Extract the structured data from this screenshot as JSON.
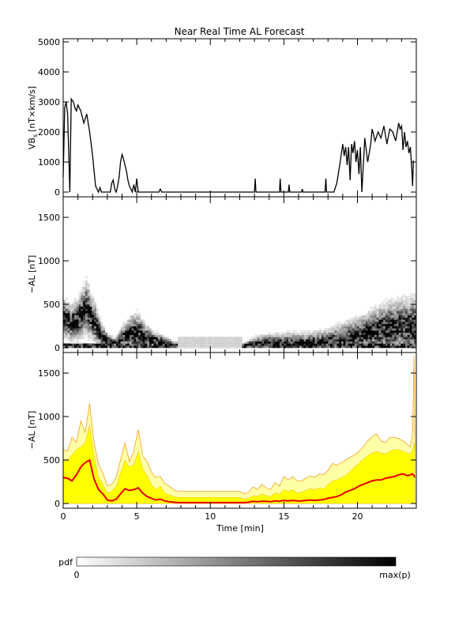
{
  "chart_data": [
    {
      "type": "line",
      "title": "Near Real Time AL Forecast",
      "ylabel": "VB",
      "ylabel_sub": "s",
      "ylabel_unit": "[nT×km/s]",
      "ylim": [
        0,
        5000
      ],
      "xlim": [
        0,
        24
      ],
      "y_ticks": [
        "0",
        "1000",
        "2000",
        "3000",
        "4000",
        "5000"
      ],
      "series": [
        {
          "color": "#000000",
          "x": [
            0,
            0.1,
            0.2,
            0.3,
            0.45,
            0.55,
            0.7,
            0.8,
            0.9,
            1.0,
            1.2,
            1.4,
            1.6,
            1.8,
            2.0,
            2.1,
            2.2,
            2.4,
            2.5,
            2.6,
            3.2,
            3.3,
            3.4,
            3.5,
            3.6,
            3.7,
            3.8,
            3.9,
            4.0,
            4.1,
            4.2,
            4.3,
            4.4,
            4.5,
            4.6,
            4.7,
            4.8,
            4.9,
            5.0,
            5.1,
            5.2,
            5.4,
            6.5,
            6.6,
            6.7,
            7.5,
            12.0,
            13.0,
            13.05,
            13.1,
            14.7,
            14.75,
            14.8,
            15.3,
            15.35,
            15.4,
            16.2,
            16.25,
            16.3,
            17.8,
            17.85,
            17.9,
            18.4,
            18.6,
            18.8,
            19.0,
            19.1,
            19.2,
            19.3,
            19.4,
            19.5,
            19.6,
            19.7,
            19.8,
            19.9,
            20.0,
            20.1,
            20.2,
            20.3,
            20.5,
            20.7,
            20.9,
            21.0,
            21.2,
            21.4,
            21.6,
            21.8,
            22.0,
            22.2,
            22.4,
            22.6,
            22.8,
            22.9,
            23.0,
            23.1,
            23.2,
            23.3,
            23.4,
            23.5,
            23.6,
            23.7,
            23.75,
            23.8
          ],
          "values": [
            500,
            2800,
            3000,
            2600,
            0,
            3100,
            3000,
            2800,
            2700,
            2900,
            2700,
            2300,
            2600,
            2000,
            1200,
            700,
            200,
            0,
            150,
            0,
            0,
            300,
            400,
            100,
            0,
            200,
            500,
            1000,
            1250,
            1100,
            900,
            700,
            400,
            200,
            100,
            0,
            250,
            0,
            450,
            0,
            0,
            0,
            0,
            100,
            0,
            0,
            0,
            0,
            450,
            0,
            0,
            450,
            0,
            0,
            250,
            0,
            0,
            100,
            0,
            0,
            450,
            0,
            0,
            300,
            900,
            1600,
            1200,
            1500,
            900,
            1500,
            400,
            1600,
            1300,
            1700,
            1000,
            1400,
            600,
            1500,
            0,
            1800,
            1000,
            1600,
            2100,
            1700,
            2000,
            1800,
            2200,
            1600,
            2100,
            2000,
            1700,
            2300,
            2100,
            2200,
            1400,
            2000,
            1500,
            1700,
            1300,
            1500,
            700,
            200,
            1050
          ]
        }
      ]
    },
    {
      "type": "heatmap",
      "ylabel": "−AL [nT]",
      "ylim": [
        0,
        1700
      ],
      "xlim": [
        0,
        24
      ],
      "y_ticks": [
        "0",
        "500",
        "1000",
        "1500"
      ],
      "colorbar": {
        "label": "pdf",
        "min_label": "0",
        "max_label": "max(p)"
      },
      "profile": {
        "x": [
          0,
          0.5,
          1.0,
          1.5,
          2.0,
          2.5,
          3.0,
          3.5,
          4.0,
          4.5,
          5.0,
          5.5,
          6.0,
          6.5,
          7.0,
          7.5,
          8.0,
          12.0,
          12.5,
          13.0,
          14.0,
          15.0,
          16.0,
          17.0,
          18.0,
          19.0,
          19.5,
          20.0,
          20.5,
          21.0,
          21.5,
          22.0,
          22.5,
          23.0,
          23.5,
          23.9
        ],
        "center": [
          330,
          270,
          330,
          460,
          300,
          140,
          60,
          40,
          100,
          150,
          160,
          110,
          80,
          60,
          40,
          20,
          10,
          10,
          20,
          30,
          30,
          30,
          35,
          40,
          50,
          80,
          100,
          120,
          150,
          180,
          200,
          220,
          230,
          240,
          230,
          200
        ],
        "spread": [
          280,
          260,
          320,
          400,
          320,
          180,
          100,
          80,
          180,
          280,
          300,
          200,
          140,
          110,
          80,
          50,
          40,
          40,
          60,
          120,
          150,
          170,
          160,
          170,
          200,
          250,
          260,
          280,
          300,
          330,
          350,
          380,
          380,
          400,
          420,
          480
        ]
      }
    },
    {
      "type": "area",
      "xlabel": "Time [min]",
      "ylabel": "−AL [nT]",
      "ylim": [
        0,
        1700
      ],
      "xlim": [
        0,
        24
      ],
      "x_ticks": [
        "0",
        "5",
        "10",
        "15",
        "20"
      ],
      "x_tick_values": [
        0,
        5,
        10,
        15,
        20
      ],
      "y_ticks": [
        "0",
        "500",
        "1000",
        "1500"
      ],
      "x": [
        0,
        0.3,
        0.6,
        0.9,
        1.2,
        1.5,
        1.8,
        2.1,
        2.4,
        2.7,
        3.0,
        3.3,
        3.6,
        3.9,
        4.2,
        4.5,
        4.8,
        5.1,
        5.4,
        5.7,
        6.0,
        6.3,
        6.6,
        6.9,
        7.2,
        7.5,
        7.8,
        8.0,
        12.0,
        12.3,
        12.6,
        12.9,
        13.2,
        13.5,
        13.8,
        14.1,
        14.4,
        14.7,
        15.0,
        15.3,
        15.6,
        15.9,
        16.2,
        16.5,
        16.8,
        17.1,
        17.4,
        17.7,
        18.0,
        18.3,
        18.6,
        18.9,
        19.2,
        19.5,
        19.8,
        20.1,
        20.4,
        20.7,
        21.0,
        21.3,
        21.6,
        21.9,
        22.2,
        22.5,
        22.8,
        23.1,
        23.4,
        23.6,
        23.75,
        23.85,
        23.9
      ],
      "series": [
        {
          "color": "#ffffa8",
          "values": [
            620,
            600,
            760,
            700,
            950,
            820,
            1150,
            700,
            450,
            350,
            200,
            220,
            300,
            500,
            700,
            480,
            600,
            850,
            550,
            480,
            360,
            300,
            310,
            230,
            200,
            160,
            140,
            140,
            140,
            110,
            130,
            190,
            160,
            220,
            180,
            160,
            240,
            200,
            310,
            270,
            310,
            260,
            260,
            290,
            320,
            300,
            340,
            330,
            380,
            460,
            440,
            470,
            500,
            530,
            560,
            600,
            650,
            720,
            770,
            800,
            720,
            700,
            760,
            760,
            750,
            720,
            680,
            650,
            800,
            1700,
            800
          ]
        },
        {
          "color": "#ffff00",
          "values": [
            480,
            500,
            560,
            620,
            650,
            700,
            900,
            550,
            300,
            220,
            120,
            140,
            200,
            350,
            500,
            420,
            450,
            600,
            400,
            320,
            220,
            160,
            200,
            120,
            100,
            80,
            70,
            70,
            70,
            50,
            60,
            90,
            80,
            110,
            90,
            80,
            120,
            110,
            160,
            140,
            160,
            120,
            130,
            150,
            170,
            160,
            180,
            170,
            220,
            260,
            270,
            300,
            320,
            370,
            420,
            460,
            510,
            550,
            580,
            600,
            580,
            570,
            600,
            620,
            620,
            600,
            580,
            570,
            620,
            700,
            600
          ]
        },
        {
          "color": "#e60000",
          "values": [
            300,
            290,
            260,
            330,
            420,
            470,
            500,
            280,
            160,
            110,
            40,
            30,
            50,
            110,
            170,
            150,
            160,
            180,
            120,
            80,
            60,
            40,
            50,
            30,
            20,
            15,
            10,
            10,
            10,
            10,
            15,
            25,
            20,
            25,
            25,
            20,
            30,
            25,
            35,
            30,
            35,
            30,
            30,
            35,
            40,
            35,
            40,
            45,
            60,
            70,
            80,
            100,
            130,
            150,
            170,
            200,
            220,
            240,
            260,
            270,
            270,
            290,
            300,
            310,
            330,
            340,
            320,
            330,
            340,
            320,
            300
          ]
        }
      ]
    }
  ]
}
